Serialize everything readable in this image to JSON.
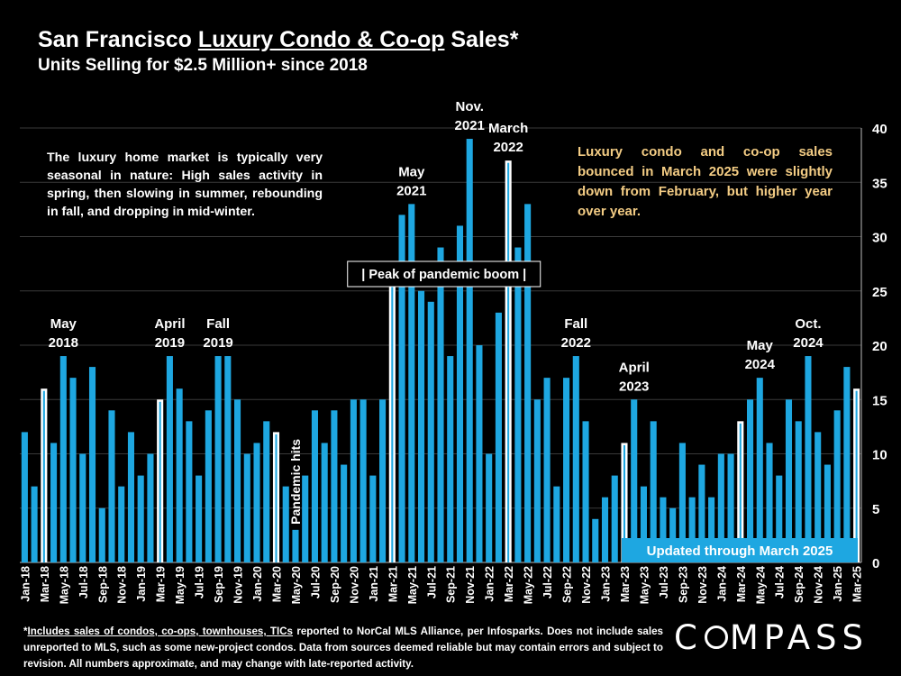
{
  "title": {
    "prefix": "San Francisco ",
    "underlined": "Luxury Condo & Co-op",
    "suffix": " Sales*"
  },
  "subtitle": "Units Selling for $2.5 Million+ since 2018",
  "note_left": "The luxury home market is typically very seasonal in nature:  High sales activity in spring, then slowing in summer, rebounding in fall, and dropping in mid-winter.",
  "note_right": "Luxury condo and co-op sales bounced in March 2025 were slightly down from February, but higher year over year.",
  "updated_label": "Updated through March 2025",
  "footnote": {
    "prefix": "*",
    "underlined": "Includes sales of condos, co-ops, townhouses, TICs",
    "rest": " reported to NorCal MLS Alliance, per Infosparks. Does not include sales unreported to MLS, such as some new-project condos. Data from sources deemed reliable but may contain errors and subject to revision.  All numbers approximate, and may change with late-reported activity."
  },
  "logo": {
    "left": "C",
    "right": "MPASS"
  },
  "colors": {
    "bar": "#1ea7e1",
    "highlight_fill": "#000000",
    "highlight_border": "#ffffff",
    "note_right": "#f3cc84",
    "background": "#000000"
  },
  "chart_data": {
    "type": "bar",
    "title": "San Francisco Luxury Condo & Co-op Sales*",
    "ylabel": "",
    "xlabel": "",
    "ylim": [
      0,
      40
    ],
    "yticks": [
      0,
      5,
      10,
      15,
      20,
      25,
      30,
      35,
      40
    ],
    "y_axis_side": "right",
    "grid": true,
    "categories": [
      "Jan-18",
      "Feb-18",
      "Mar-18",
      "Apr-18",
      "May-18",
      "Jun-18",
      "Jul-18",
      "Aug-18",
      "Sep-18",
      "Oct-18",
      "Nov-18",
      "Dec-18",
      "Jan-19",
      "Feb-19",
      "Mar-19",
      "Apr-19",
      "May-19",
      "Jun-19",
      "Jul-19",
      "Aug-19",
      "Sep-19",
      "Oct-19",
      "Nov-19",
      "Dec-19",
      "Jan-20",
      "Feb-20",
      "Mar-20",
      "Apr-20",
      "May-20",
      "Jun-20",
      "Jul-20",
      "Aug-20",
      "Sep-20",
      "Oct-20",
      "Nov-20",
      "Dec-20",
      "Jan-21",
      "Feb-21",
      "Mar-21",
      "Apr-21",
      "May-21",
      "Jun-21",
      "Jul-21",
      "Aug-21",
      "Sep-21",
      "Oct-21",
      "Nov-21",
      "Dec-21",
      "Jan-22",
      "Feb-22",
      "Mar-22",
      "Apr-22",
      "May-22",
      "Jun-22",
      "Jul-22",
      "Aug-22",
      "Sep-22",
      "Oct-22",
      "Nov-22",
      "Dec-22",
      "Jan-23",
      "Feb-23",
      "Mar-23",
      "Apr-23",
      "May-23",
      "Jun-23",
      "Jul-23",
      "Aug-23",
      "Sep-23",
      "Oct-23",
      "Nov-23",
      "Dec-23",
      "Jan-24",
      "Feb-24",
      "Mar-24",
      "Apr-24",
      "May-24",
      "Jun-24",
      "Jul-24",
      "Aug-24",
      "Sep-24",
      "Oct-24",
      "Nov-24",
      "Dec-24",
      "Jan-25",
      "Feb-25",
      "Mar-25"
    ],
    "values": [
      12,
      7,
      16,
      11,
      19,
      17,
      10,
      18,
      5,
      14,
      7,
      12,
      8,
      10,
      15,
      19,
      16,
      13,
      8,
      14,
      19,
      19,
      15,
      10,
      11,
      13,
      12,
      7,
      3,
      8,
      14,
      11,
      14,
      9,
      15,
      15,
      8,
      15,
      26,
      32,
      33,
      25,
      24,
      29,
      19,
      31,
      39,
      20,
      10,
      23,
      37,
      29,
      33,
      15,
      17,
      7,
      17,
      19,
      13,
      4,
      6,
      8,
      11,
      15,
      7,
      13,
      6,
      5,
      11,
      6,
      9,
      6,
      10,
      10,
      13,
      15,
      17,
      11,
      8,
      15,
      13,
      19,
      12,
      9,
      14,
      18,
      16
    ],
    "highlighted_indices": [
      2,
      14,
      26,
      38,
      50,
      62,
      74,
      86
    ],
    "x_tick_labels_shown_every": 2,
    "annotations": [
      {
        "index": 4,
        "lines": [
          "May",
          "2018"
        ]
      },
      {
        "index": 15,
        "lines": [
          "April",
          "2019"
        ]
      },
      {
        "index": 20,
        "lines": [
          "Fall",
          "2019"
        ]
      },
      {
        "index": 28,
        "lines": [
          "Pandemic hits"
        ],
        "vertical": true
      },
      {
        "index": 40,
        "lines": [
          "May",
          "2021"
        ]
      },
      {
        "index": 46,
        "lines": [
          "Nov.",
          "2021"
        ]
      },
      {
        "index": 50,
        "lines": [
          "March",
          "2022"
        ]
      },
      {
        "index": 57,
        "lines": [
          "Fall",
          "2022"
        ]
      },
      {
        "index": 63,
        "lines": [
          "April",
          "2023"
        ]
      },
      {
        "index": 76,
        "lines": [
          "May",
          "2024"
        ]
      },
      {
        "index": 81,
        "lines": [
          "Oct.",
          "2024"
        ]
      }
    ],
    "boxed_annotation": {
      "text": "| Peak of pandemic boom |",
      "index": 44
    }
  }
}
